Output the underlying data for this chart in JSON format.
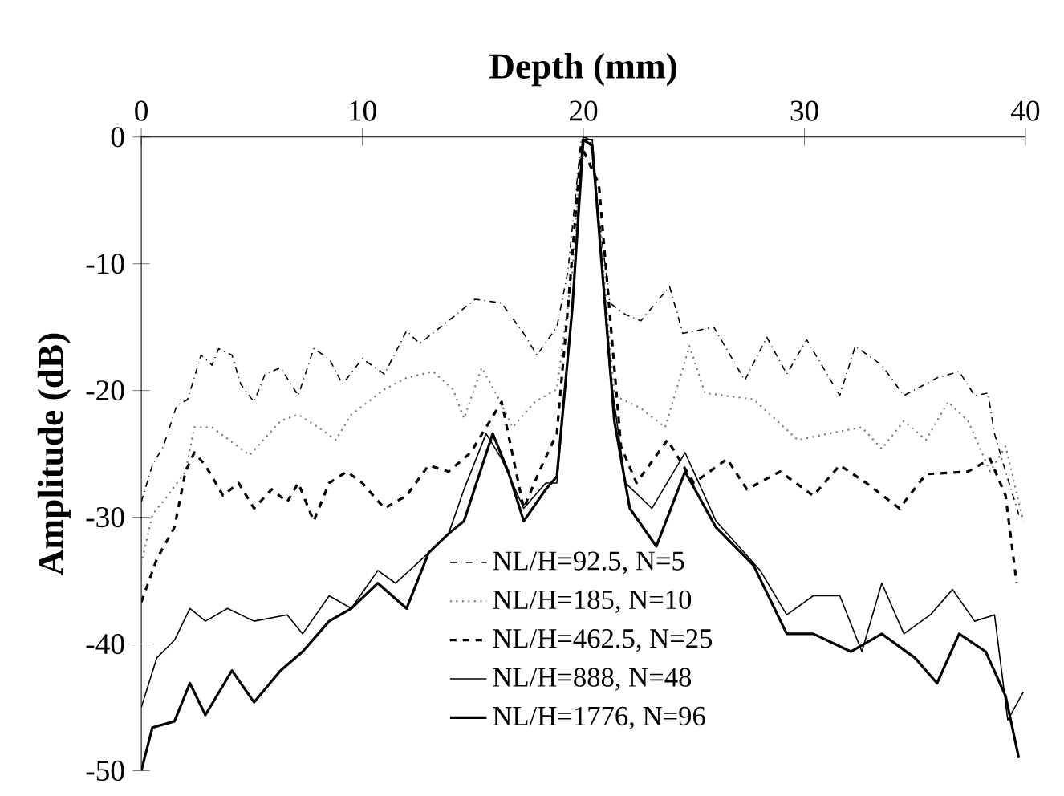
{
  "chart_data": {
    "type": "line",
    "xlabel": "Depth (mm)",
    "ylabel": "Amplitude (dB)",
    "xlim": [
      0,
      40
    ],
    "xticks": [
      0,
      10,
      20,
      30,
      40
    ],
    "ylim": [
      -50,
      0
    ],
    "yticks": [
      0,
      -10,
      -20,
      -30,
      -40,
      -50
    ],
    "grid": false,
    "legend": "bottom",
    "marker": "none",
    "series": [
      {
        "name": "NL/H=92.5, N=5",
        "color": "#000000",
        "line_style": "dashdot",
        "x": [
          0,
          0.5,
          1,
          1.6,
          2.1,
          2.7,
          3.2,
          3.5,
          4.1,
          4.5,
          5.1,
          5.6,
          6.3,
          7.1,
          7.8,
          8.5,
          9.1,
          10,
          11,
          12,
          12.6,
          13.9,
          15.1,
          16.3,
          17.3,
          17.9,
          18.8,
          19.3,
          19.9,
          20,
          20.3,
          20.7,
          21.2,
          21.9,
          22.6,
          23.9,
          24.5,
          25.9,
          27.3,
          28.3,
          29.2,
          30.1,
          31.6,
          32.3,
          33.5,
          34.5,
          36,
          37,
          37.7,
          38.3,
          38.6,
          39.1,
          39.7
        ],
        "values": [
          -28.8,
          -25.9,
          -24.4,
          -21.2,
          -20.7,
          -17.2,
          -18,
          -16.7,
          -17.2,
          -19.5,
          -20.9,
          -18.7,
          -18.2,
          -20.4,
          -16.7,
          -17.5,
          -19.5,
          -17.5,
          -18.7,
          -15.3,
          -16.3,
          -14.5,
          -12.8,
          -13.1,
          -15.5,
          -17.2,
          -15,
          -10.6,
          -0.2,
          0,
          -0.2,
          -6.2,
          -13.1,
          -14,
          -14.5,
          -11.8,
          -15.5,
          -15,
          -19.2,
          -15.8,
          -18.7,
          -16,
          -20.4,
          -16.5,
          -18,
          -20.4,
          -19,
          -18.5,
          -20.4,
          -20.2,
          -23.4,
          -26.4,
          -29.8
        ]
      },
      {
        "name": "NL/H=185, N=10",
        "color": "#777777",
        "line_style": "dotted",
        "x": [
          0,
          0.5,
          1.2,
          2,
          2.4,
          3.2,
          4.9,
          6.3,
          7.1,
          8,
          8.8,
          9.5,
          11,
          12,
          13.2,
          14.1,
          14.6,
          15.4,
          16.1,
          16.8,
          17.8,
          18.8,
          19.5,
          19.95,
          20.4,
          21.4,
          22.6,
          23.7,
          24.8,
          25.5,
          27.7,
          29.7,
          31.1,
          32.6,
          33.5,
          34.5,
          35.5,
          36.5,
          37.4,
          38.4,
          39.1,
          39.9
        ],
        "values": [
          -33.7,
          -29.8,
          -28.3,
          -26.4,
          -22.9,
          -22.9,
          -25.1,
          -22.4,
          -21.9,
          -22.9,
          -23.9,
          -21.9,
          -19.9,
          -19,
          -18.5,
          -19.9,
          -22.2,
          -18.2,
          -20.4,
          -22.9,
          -20.9,
          -19.9,
          -10.6,
          -0.2,
          -0.2,
          -20.4,
          -21.4,
          -22.9,
          -16.5,
          -20.2,
          -20.7,
          -23.9,
          -23.4,
          -22.9,
          -24.6,
          -22.4,
          -23.9,
          -20.9,
          -22.4,
          -26.4,
          -24.4,
          -30.3
        ]
      },
      {
        "name": "NL/H=462.5, N=25",
        "color": "#000000",
        "line_style": "dashed",
        "x": [
          0,
          0.7,
          1.5,
          2,
          2.4,
          2.9,
          3.7,
          4.4,
          5.1,
          5.9,
          6.6,
          7.1,
          7.8,
          8.5,
          9.3,
          10,
          11,
          12,
          13,
          13.9,
          14.9,
          16.3,
          17.3,
          18,
          18.8,
          19.3,
          19.9,
          20.7,
          21.7,
          22.4,
          23.8,
          25,
          26.5,
          27.4,
          28.9,
          30.4,
          31.6,
          32.8,
          34.3,
          35.5,
          37.4,
          38.4,
          39.1,
          39.6
        ],
        "values": [
          -36.7,
          -33.3,
          -30.8,
          -26.4,
          -24.9,
          -25.9,
          -28.3,
          -27.3,
          -29.3,
          -27.8,
          -28.8,
          -27.3,
          -30.3,
          -27.3,
          -26.4,
          -27.3,
          -29.3,
          -28.3,
          -25.9,
          -26.4,
          -24.9,
          -20.9,
          -29.3,
          -26.4,
          -23.4,
          -13.5,
          -0.7,
          -3.7,
          -24.4,
          -27.3,
          -23.9,
          -27.3,
          -25.4,
          -27.8,
          -26.4,
          -28.3,
          -25.9,
          -27.3,
          -29.3,
          -26.6,
          -26.4,
          -25.4,
          -28.3,
          -35.2
        ]
      },
      {
        "name": "NL/H=888, N=48",
        "color": "#000000",
        "line_style": "solid",
        "x": [
          0,
          0.7,
          1.5,
          2.2,
          2.9,
          3.9,
          5.1,
          6.6,
          7.3,
          8.5,
          9.5,
          10.7,
          11.5,
          12.7,
          13.9,
          14.6,
          15.6,
          16.3,
          17.3,
          18.3,
          18.8,
          19.5,
          19.95,
          20.4,
          21.2,
          21.9,
          23.1,
          24.6,
          26,
          28,
          29.2,
          30.4,
          31.6,
          32.6,
          33.5,
          34.5,
          35.7,
          36.7,
          37.7,
          38.6,
          39.2,
          39.9
        ],
        "values": [
          -45,
          -41.1,
          -39.7,
          -37.2,
          -38.2,
          -37.2,
          -38.2,
          -37.7,
          -39.2,
          -36.2,
          -37.2,
          -34.2,
          -35.2,
          -33.3,
          -31.3,
          -27.8,
          -23.4,
          -25.4,
          -29.3,
          -27.3,
          -27.3,
          -13.5,
          -0.2,
          -0.2,
          -18.5,
          -27.3,
          -29.3,
          -24.9,
          -30.3,
          -34.2,
          -37.7,
          -36.2,
          -36.2,
          -40.6,
          -35.2,
          -39.2,
          -37.7,
          -35.7,
          -38.2,
          -37.7,
          -46,
          -43.8
        ]
      },
      {
        "name": "NL/H=1776, N=96",
        "color": "#000000",
        "line_style": "solid",
        "x": [
          0,
          0.5,
          1.5,
          2.2,
          2.9,
          4.1,
          5.1,
          6.3,
          7.3,
          8.5,
          9.5,
          10.7,
          12,
          13,
          13.9,
          14.6,
          15.9,
          16.6,
          17.3,
          18.3,
          18.8,
          19.5,
          20,
          20.4,
          21.4,
          22.1,
          23.3,
          24.6,
          26,
          27.7,
          29.2,
          30.4,
          32.1,
          33.5,
          35,
          36,
          37,
          38.2,
          39.1,
          39.7
        ],
        "values": [
          -50,
          -46.6,
          -46.1,
          -43.1,
          -45.6,
          -42.1,
          -44.6,
          -42.1,
          -40.6,
          -38.2,
          -37.2,
          -35.2,
          -37.2,
          -32.8,
          -31.3,
          -30.3,
          -23.4,
          -26.4,
          -30.3,
          -27.8,
          -26.8,
          -13.5,
          -0.2,
          -0.7,
          -22.4,
          -29.3,
          -32.3,
          -26.4,
          -30.8,
          -33.8,
          -39.2,
          -39.2,
          -40.6,
          -39.2,
          -41.1,
          -43.1,
          -39.2,
          -40.6,
          -44.1,
          -49
        ]
      }
    ]
  }
}
